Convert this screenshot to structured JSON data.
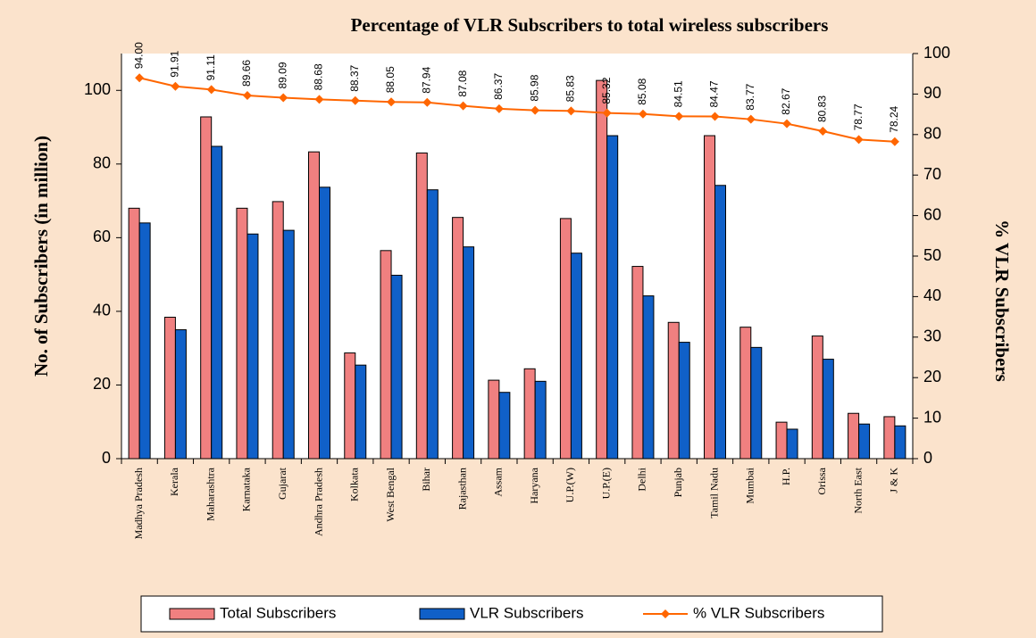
{
  "chart_data": {
    "type": "bar_line",
    "title": "Percentage of VLR Subscribers to total wireless subscribers",
    "y_label": "No. of Subscribers (in million)",
    "y2_label": "% VLR Subscribers",
    "categories": [
      "Madhya Pradesh",
      "Kerala",
      "Maharashtra",
      "Karnataka",
      "Gujarat",
      "Andhra Pradesh",
      "Kolkata",
      "West Bengal",
      "Bihar",
      "Rajasthan",
      "Assam",
      "Haryana",
      "U.P.(W)",
      "U.P.(E)",
      "Delhi",
      "Punjab",
      "Tamil Nadu",
      "Mumbai",
      "H.P.",
      "Orissa",
      "North East",
      "J & K"
    ],
    "series": [
      {
        "name": "Total Subscribers",
        "type": "bar",
        "color": "#f08080",
        "values": [
          68,
          38.4,
          92.8,
          68,
          69.8,
          83.3,
          28.7,
          56.5,
          83,
          65.5,
          21.3,
          24.4,
          65.2,
          102.7,
          52.2,
          37,
          87.7,
          35.7,
          9.9,
          33.3,
          12.3,
          11.4
        ]
      },
      {
        "name": "VLR Subscribers",
        "type": "bar",
        "color": "#1060c8",
        "values": [
          64,
          35,
          84.8,
          61,
          62,
          73.7,
          25.4,
          49.8,
          73,
          57.5,
          18,
          21,
          55.8,
          87.7,
          44.2,
          31.6,
          74.2,
          30.2,
          8,
          27,
          9.4,
          8.9
        ]
      },
      {
        "name": "% VLR Subscribers",
        "type": "line",
        "axis": "y2",
        "color": "#ff6600",
        "values": [
          94,
          91.91,
          91.11,
          89.66,
          89.09,
          88.68,
          88.37,
          88.05,
          87.94,
          87.08,
          86.37,
          85.98,
          85.83,
          85.32,
          85.08,
          84.51,
          84.47,
          83.77,
          82.67,
          80.83,
          78.77,
          78.24
        ],
        "value_labels": [
          "94.00",
          "91.91",
          "91.11",
          "89.66",
          "89.09",
          "88.68",
          "88.37",
          "88.05",
          "87.94",
          "87.08",
          "86.37",
          "85.98",
          "85.83",
          "85.32",
          "85.08",
          "84.51",
          "84.47",
          "83.77",
          "82.67",
          "80.83",
          "78.77",
          "78.24"
        ]
      }
    ],
    "ylim": [
      0,
      110
    ],
    "yticks": [
      0,
      20,
      40,
      60,
      80,
      100
    ],
    "y2lim": [
      0,
      100
    ],
    "y2ticks": [
      0,
      10,
      20,
      30,
      40,
      50,
      60,
      70,
      80,
      90,
      100
    ],
    "legend": "bottom"
  }
}
